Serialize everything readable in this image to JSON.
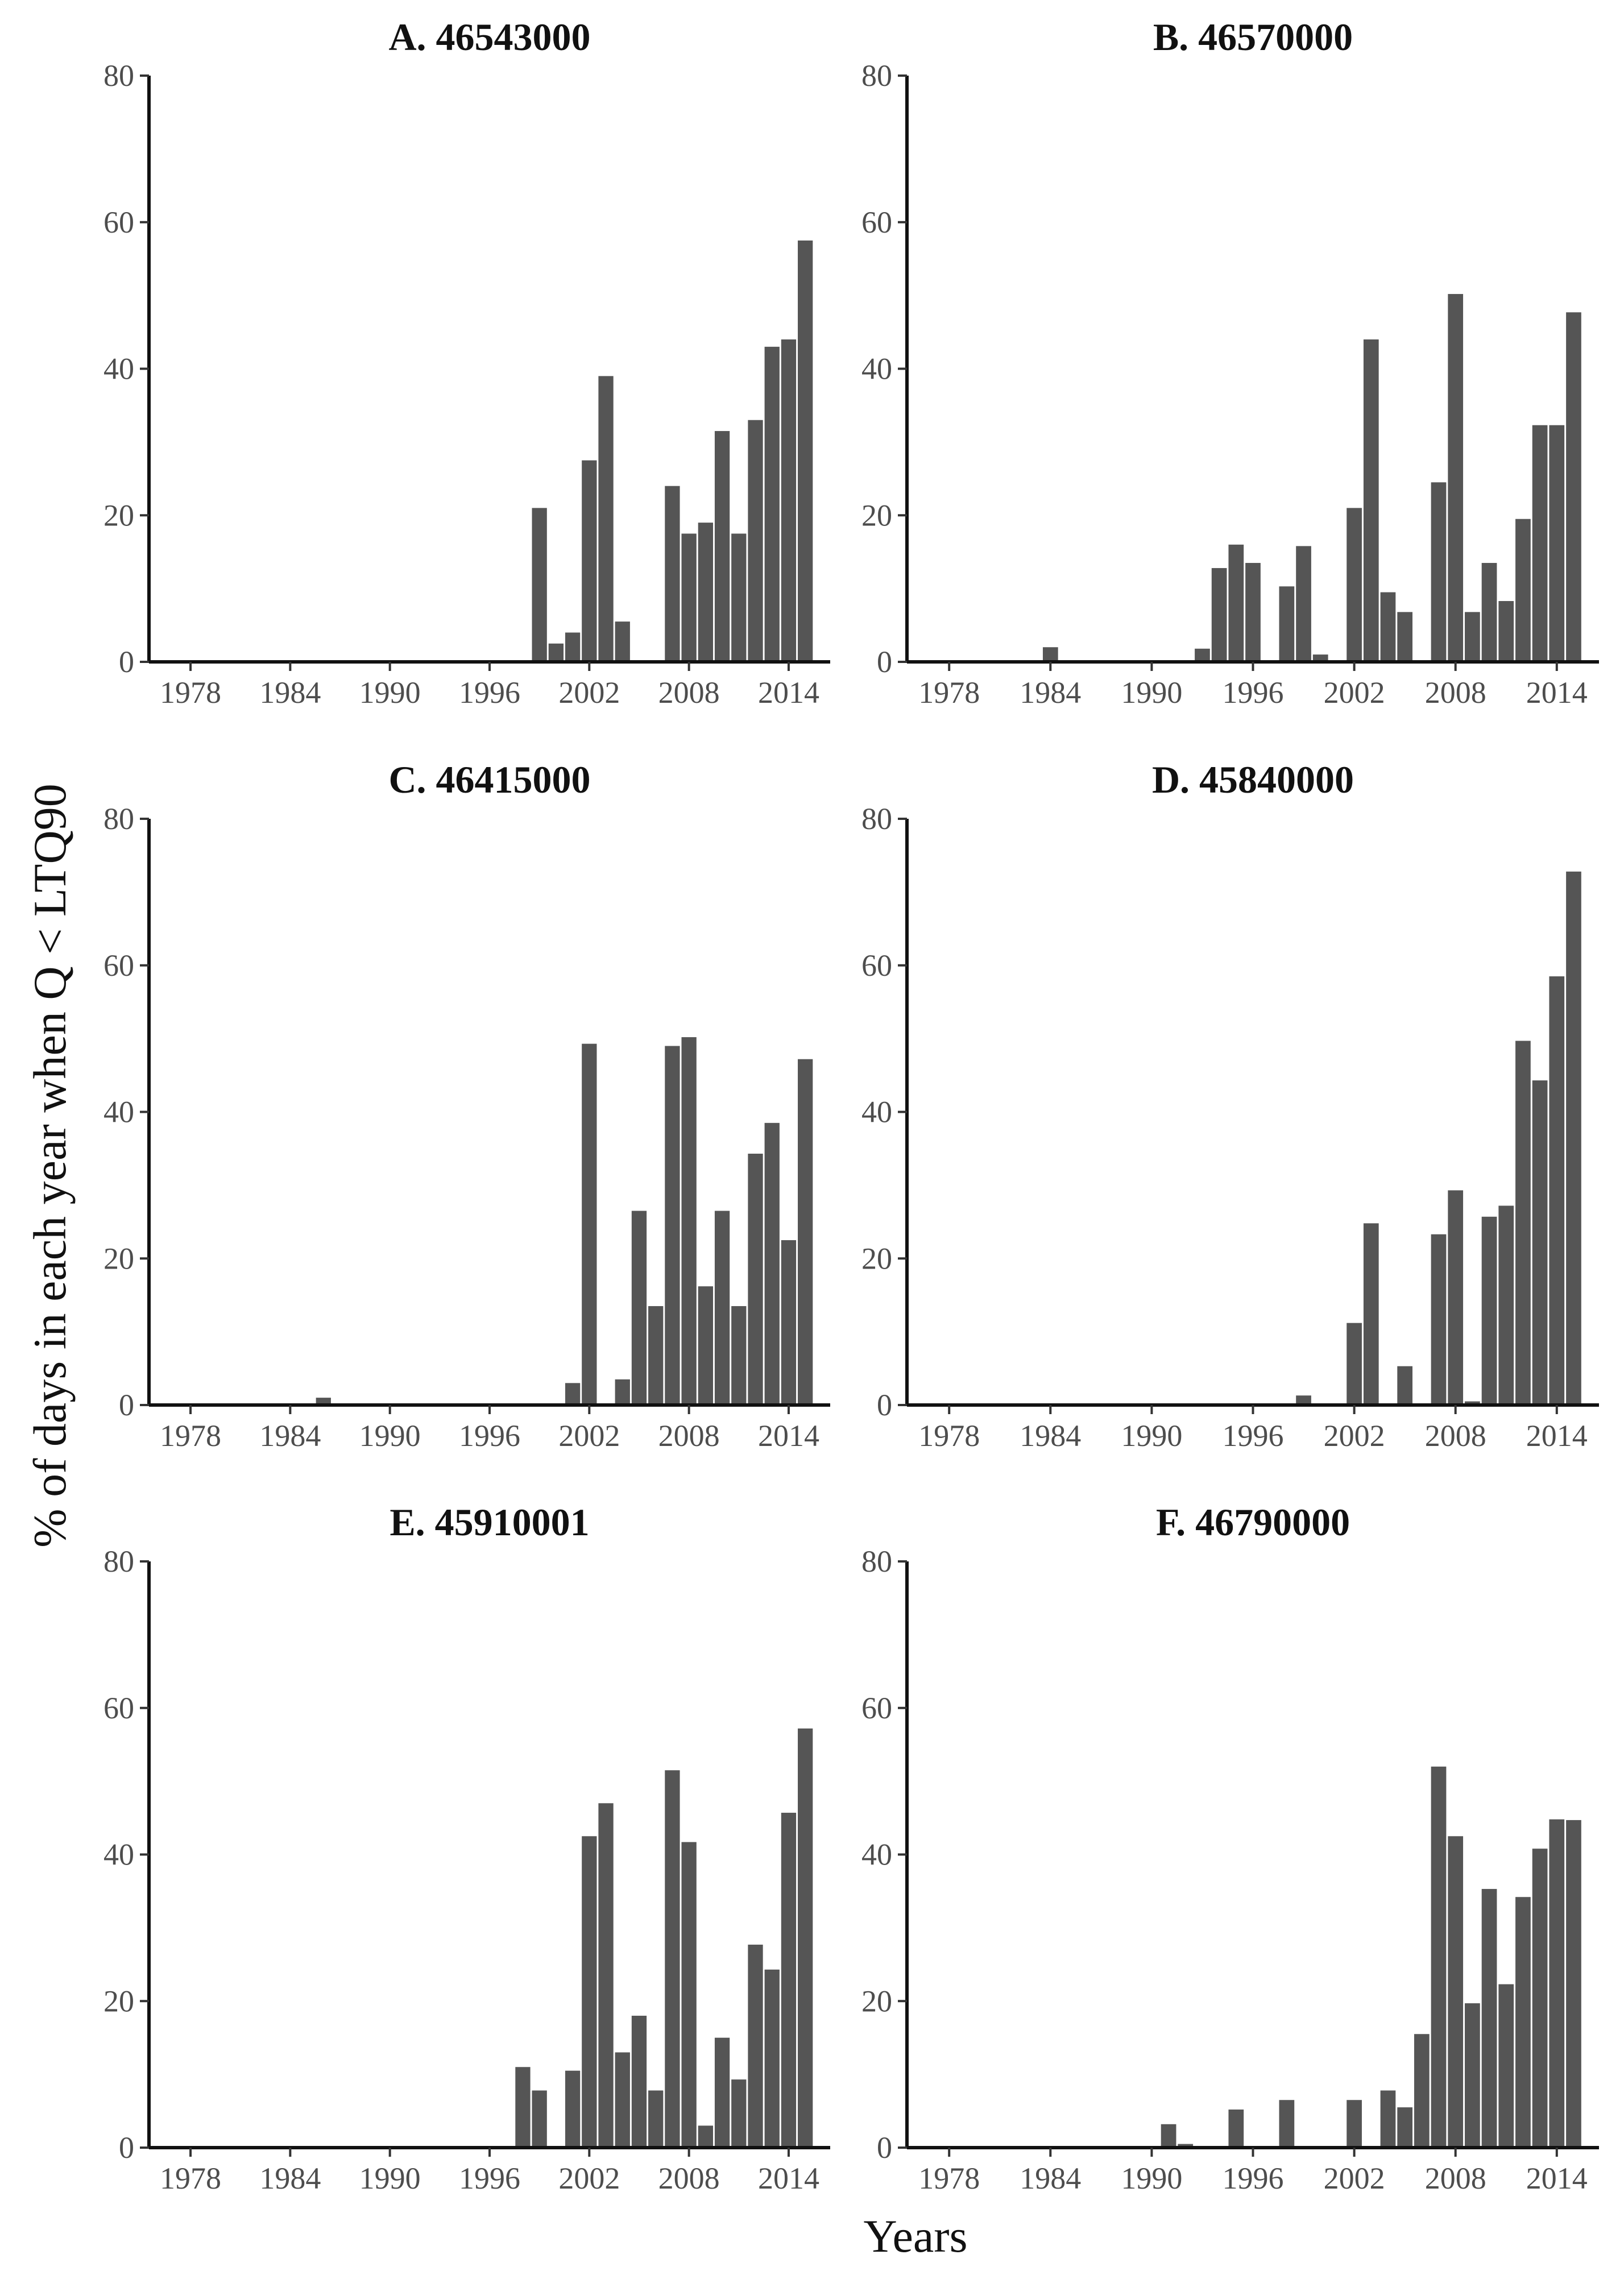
{
  "figure": {
    "ylabel": "% of days in each year when Q < LTQ90",
    "xlabel": "Years"
  },
  "chart_data": [
    {
      "type": "bar",
      "title": "A. 46543000",
      "xlabel": "Years",
      "ylabel": "% of days in each year when Q < LTQ90",
      "xlim": [
        1975.5,
        2016.5
      ],
      "ylim": [
        0,
        80
      ],
      "xticks": [
        1978,
        1984,
        1990,
        1996,
        2002,
        2008,
        2014
      ],
      "yticks": [
        0,
        20,
        40,
        60,
        80
      ],
      "x": [
        1999,
        2000,
        2001,
        2002,
        2003,
        2004,
        2007,
        2008,
        2009,
        2010,
        2011,
        2012,
        2013,
        2014,
        2015
      ],
      "values": [
        21,
        2.5,
        4,
        27.5,
        39,
        5.5,
        24,
        17.5,
        19,
        31.5,
        17.5,
        33,
        43,
        44,
        57.5
      ]
    },
    {
      "type": "bar",
      "title": "B. 46570000",
      "xlabel": "Years",
      "ylabel": "% of days in each year when Q < LTQ90",
      "xlim": [
        1975.5,
        2016.5
      ],
      "ylim": [
        0,
        80
      ],
      "xticks": [
        1978,
        1984,
        1990,
        1996,
        2002,
        2008,
        2014
      ],
      "yticks": [
        0,
        20,
        40,
        60,
        80
      ],
      "x": [
        1984,
        1993,
        1994,
        1995,
        1996,
        1998,
        1999,
        2000,
        2002,
        2003,
        2004,
        2005,
        2007,
        2008,
        2009,
        2010,
        2011,
        2012,
        2013,
        2014,
        2015
      ],
      "values": [
        2,
        1.8,
        12.8,
        16,
        13.5,
        10.3,
        15.8,
        1,
        21,
        44,
        9.5,
        6.8,
        24.5,
        50.2,
        6.8,
        13.5,
        8.3,
        19.5,
        32.3,
        32.3,
        47.7
      ]
    },
    {
      "type": "bar",
      "title": "C. 46415000",
      "xlabel": "Years",
      "ylabel": "% of days in each year when Q < LTQ90",
      "xlim": [
        1975.5,
        2016.5
      ],
      "ylim": [
        0,
        80
      ],
      "xticks": [
        1978,
        1984,
        1990,
        1996,
        2002,
        2008,
        2014
      ],
      "yticks": [
        0,
        20,
        40,
        60,
        80
      ],
      "x": [
        1986,
        2001,
        2002,
        2004,
        2005,
        2006,
        2007,
        2008,
        2009,
        2010,
        2011,
        2012,
        2013,
        2014,
        2015
      ],
      "values": [
        1,
        3,
        49.3,
        3.5,
        26.5,
        13.5,
        49,
        50.2,
        16.2,
        26.5,
        13.5,
        34.3,
        38.5,
        22.5,
        47.2
      ]
    },
    {
      "type": "bar",
      "title": "D. 45840000",
      "xlabel": "Years",
      "ylabel": "% of days in each year when Q < LTQ90",
      "xlim": [
        1975.5,
        2016.5
      ],
      "ylim": [
        0,
        80
      ],
      "xticks": [
        1978,
        1984,
        1990,
        1996,
        2002,
        2008,
        2014
      ],
      "yticks": [
        0,
        20,
        40,
        60,
        80
      ],
      "x": [
        1999,
        2002,
        2003,
        2005,
        2007,
        2008,
        2009,
        2010,
        2011,
        2012,
        2013,
        2014,
        2015
      ],
      "values": [
        1.3,
        11.2,
        24.8,
        5.3,
        23.3,
        29.3,
        0.5,
        25.7,
        27.2,
        49.7,
        44.3,
        58.5,
        72.8
      ]
    },
    {
      "type": "bar",
      "title": "E. 45910001",
      "xlabel": "Years",
      "ylabel": "% of days in each year when Q < LTQ90",
      "xlim": [
        1975.5,
        2016.5
      ],
      "ylim": [
        0,
        80
      ],
      "xticks": [
        1978,
        1984,
        1990,
        1996,
        2002,
        2008,
        2014
      ],
      "yticks": [
        0,
        20,
        40,
        60,
        80
      ],
      "x": [
        1998,
        1999,
        2001,
        2002,
        2003,
        2004,
        2005,
        2006,
        2007,
        2008,
        2009,
        2010,
        2011,
        2012,
        2013,
        2014,
        2015
      ],
      "values": [
        11,
        7.8,
        10.5,
        42.5,
        47,
        13,
        18,
        7.8,
        51.5,
        41.7,
        3,
        15,
        9.3,
        27.7,
        24.3,
        45.7,
        57.2
      ]
    },
    {
      "type": "bar",
      "title": "F. 46790000",
      "xlabel": "Years",
      "ylabel": "% of days in each year when Q < LTQ90",
      "xlim": [
        1975.5,
        2016.5
      ],
      "ylim": [
        0,
        80
      ],
      "xticks": [
        1978,
        1984,
        1990,
        1996,
        2002,
        2008,
        2014
      ],
      "yticks": [
        0,
        20,
        40,
        60,
        80
      ],
      "x": [
        1991,
        1992,
        1995,
        1998,
        2002,
        2004,
        2005,
        2006,
        2007,
        2008,
        2009,
        2010,
        2011,
        2012,
        2013,
        2014,
        2015
      ],
      "values": [
        3.2,
        0.5,
        5.2,
        6.5,
        6.5,
        7.8,
        5.5,
        15.5,
        52,
        42.5,
        19.7,
        35.3,
        22.3,
        34.2,
        40.8,
        44.8,
        44.7
      ]
    }
  ]
}
